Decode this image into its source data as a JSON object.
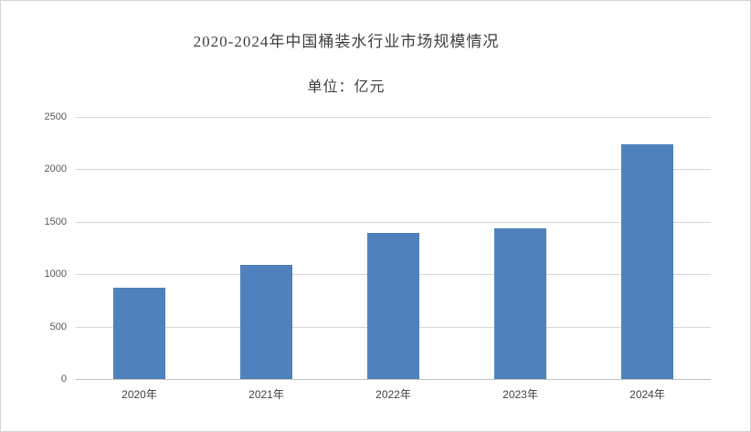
{
  "chart_data": {
    "type": "bar",
    "title": "2020-2024年中国桶装水行业市场规模情况",
    "subtitle": "单位：亿元",
    "unit": "亿元",
    "categories": [
      "2020年",
      "2021年",
      "2022年",
      "2023年",
      "2024年"
    ],
    "values": [
      870,
      1090,
      1390,
      1440,
      2240
    ],
    "ylim": [
      0,
      2500
    ],
    "ytick_interval": 500,
    "yticks": [
      0,
      500,
      1000,
      1500,
      2000,
      2500
    ],
    "grid": true,
    "legend_position": "none",
    "bar_color": "#4f81bd",
    "gridline_color": "#d9d9d9",
    "axis_label_color": "#595959",
    "title_color": "#404040"
  }
}
